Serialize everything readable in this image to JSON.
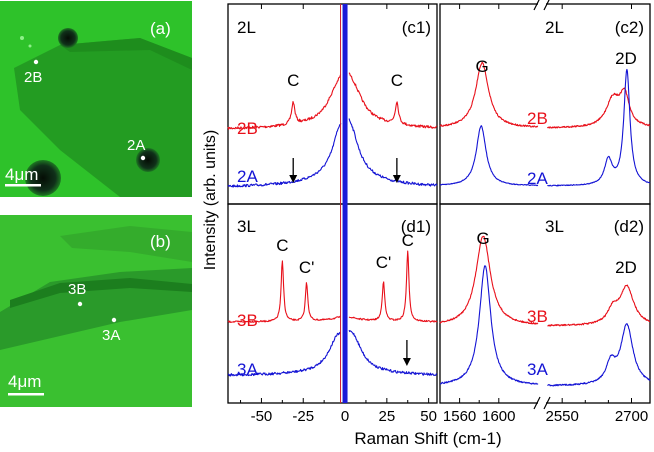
{
  "micrographs": [
    {
      "panel_label": "(a)",
      "scale_bar": "4μm",
      "markers": [
        "2B",
        "2A"
      ],
      "colors": {
        "background": "#2ec22a",
        "flake": "#229a22",
        "bubble": "#0f2a10"
      }
    },
    {
      "panel_label": "(b)",
      "scale_bar": "4μm",
      "markers": [
        "3B",
        "3A"
      ],
      "colors": {
        "background": "#3ac030",
        "flake": "#2a9a2a",
        "bubble": "#0f2a10"
      }
    }
  ],
  "chart_data": {
    "type": "line",
    "xlabel": "Raman Shift (cm-1)",
    "ylabel": "Intensity (arb. units)",
    "colors": {
      "red": "#e8101a",
      "blue": "#1414d4",
      "laser_line": "#1a1ad8"
    },
    "panels": [
      {
        "id": "c1",
        "panel_label": "(c1)",
        "layer_label": "2L",
        "x_range": [
          -70,
          55
        ],
        "x_ticks": [
          -50,
          -25,
          0,
          25,
          50
        ],
        "series": [
          {
            "name": "2B",
            "color": "red",
            "peaks": [
              -31,
              31
            ],
            "broad_background": true
          },
          {
            "name": "2A",
            "color": "blue",
            "peaks": [],
            "broad_background": true
          }
        ],
        "annotations": [
          "C",
          "C"
        ],
        "arrows": [
          -31,
          31
        ]
      },
      {
        "id": "c2",
        "panel_label": "(c2)",
        "layer_label": "2L",
        "x_range": [
          1540,
          2740
        ],
        "x_ticks": [
          1560,
          1600,
          2550,
          2700
        ],
        "axis_break": true,
        "series": [
          {
            "name": "2B",
            "color": "red",
            "peaks": [
              "G",
              "2D"
            ]
          },
          {
            "name": "2A",
            "color": "blue",
            "peaks": [
              "G",
              "2D"
            ]
          }
        ],
        "annotations": [
          "G",
          "2D"
        ]
      },
      {
        "id": "d1",
        "panel_label": "(d1)",
        "layer_label": "3L",
        "x_range": [
          -70,
          55
        ],
        "x_ticks": [
          -50,
          -25,
          0,
          25,
          50
        ],
        "series": [
          {
            "name": "3B",
            "color": "red",
            "peaks": [
              -37.5,
              -23,
              23,
              37.5
            ]
          },
          {
            "name": "3A",
            "color": "blue",
            "peaks": [],
            "broad_background": true
          }
        ],
        "annotations": [
          "C",
          "C'",
          "C'",
          "C"
        ],
        "arrows": [
          37
        ]
      },
      {
        "id": "d2",
        "panel_label": "(d2)",
        "layer_label": "3L",
        "x_range": [
          1540,
          2740
        ],
        "x_ticks": [
          1560,
          1600,
          2550,
          2700
        ],
        "axis_break": true,
        "series": [
          {
            "name": "3B",
            "color": "red",
            "peaks": [
              "G",
              "2D"
            ]
          },
          {
            "name": "3A",
            "color": "blue",
            "peaks": [
              "G",
              "2D"
            ]
          }
        ],
        "annotations": [
          "G",
          "2D"
        ]
      }
    ]
  }
}
